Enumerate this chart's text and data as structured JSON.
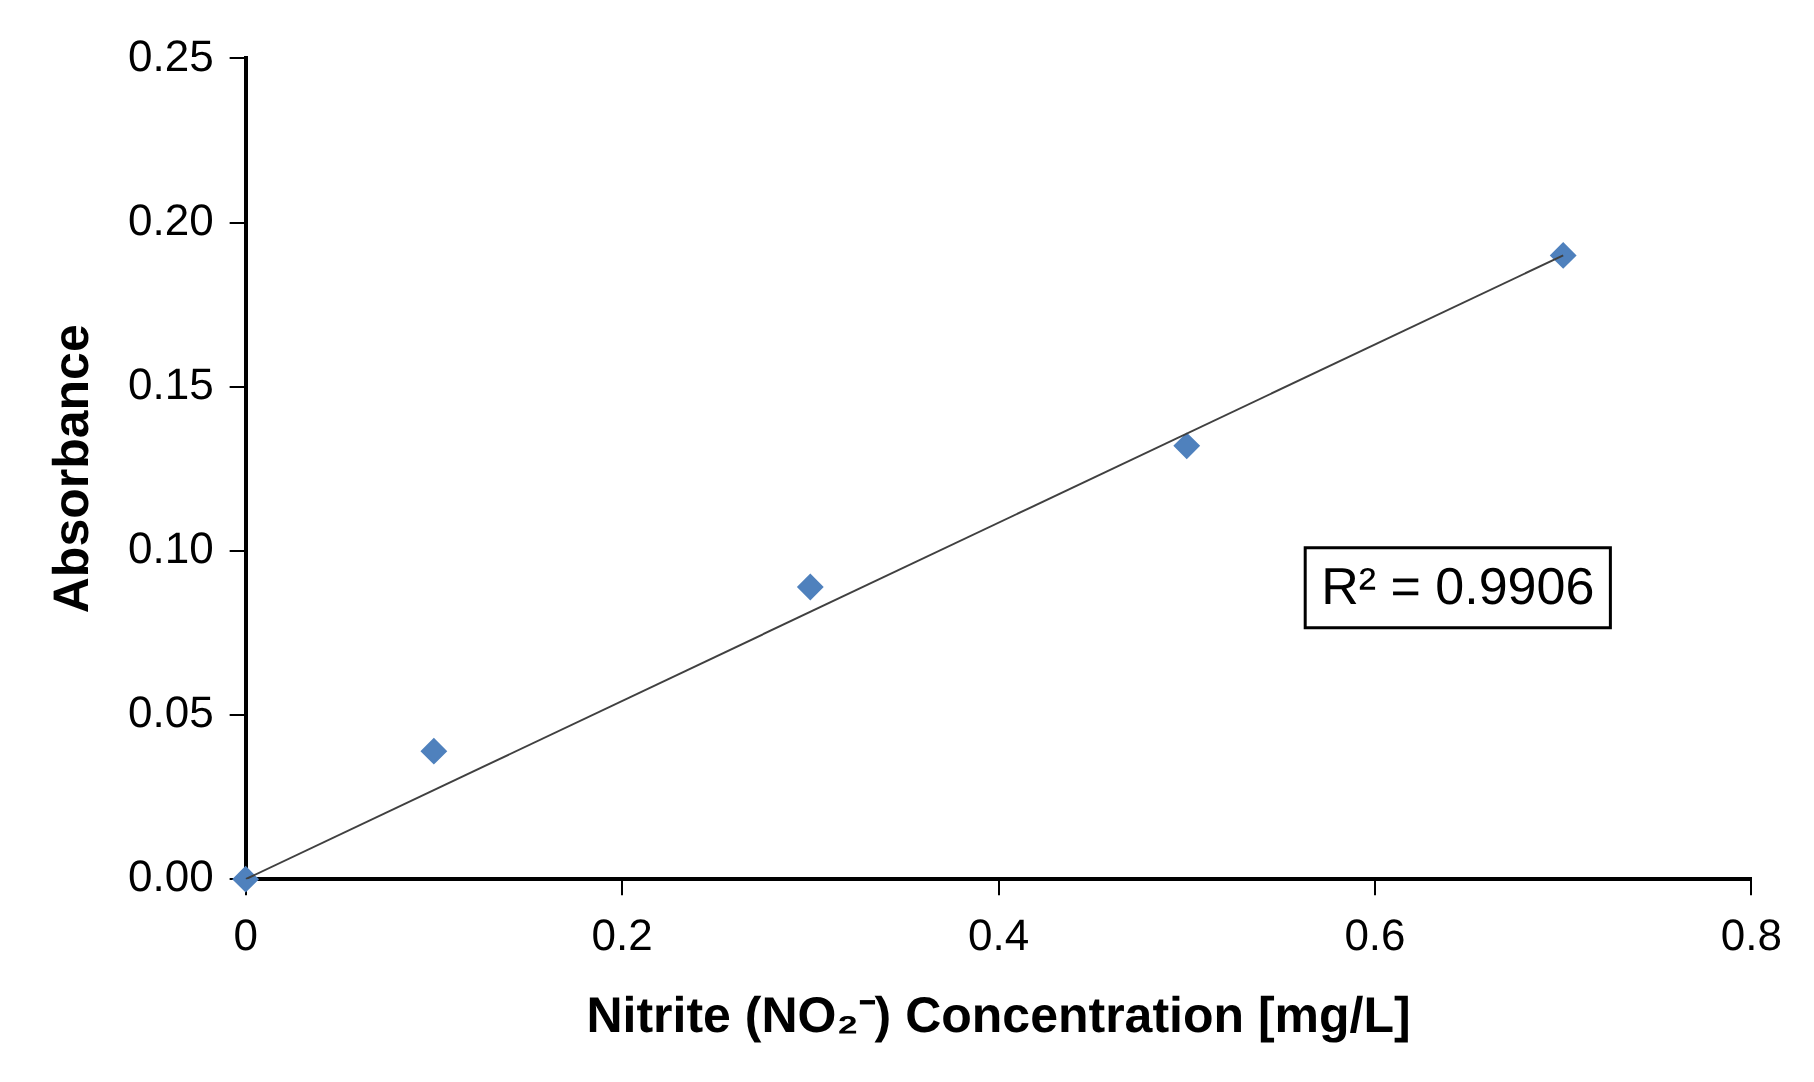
{
  "chart_data": {
    "type": "scatter",
    "xlabel": "Nitrite (NO₂⁻) Concentration [mg/L]",
    "ylabel": "Absorbance",
    "annotations": [
      "R² = 0.9906"
    ],
    "xlim": [
      0,
      0.8
    ],
    "xticks": [
      0,
      0.2,
      0.4,
      0.6,
      0.8
    ],
    "ylim": [
      0,
      0.25
    ],
    "yticks": [
      {
        "value": 0,
        "label": "0.00"
      },
      {
        "value": 0.05,
        "label": "0.05"
      },
      {
        "value": 0.1,
        "label": "0.10"
      },
      {
        "value": 0.15,
        "label": "0.15"
      },
      {
        "value": 0.2,
        "label": "0.20"
      },
      {
        "value": 0.25,
        "label": "0.25"
      }
    ],
    "grid": false,
    "legend": false,
    "series": [
      {
        "type": "scatter",
        "marker": "diamond",
        "color": "#4f81bd",
        "x": [
          0,
          0.1,
          0.3,
          0.5,
          0.7
        ],
        "values": [
          0,
          0.039,
          0.089,
          0.132,
          0.19
        ]
      },
      {
        "type": "line",
        "marker": "none",
        "color": "#404040",
        "x": [
          0,
          0.7
        ],
        "values": [
          0,
          0.19
        ]
      }
    ]
  }
}
